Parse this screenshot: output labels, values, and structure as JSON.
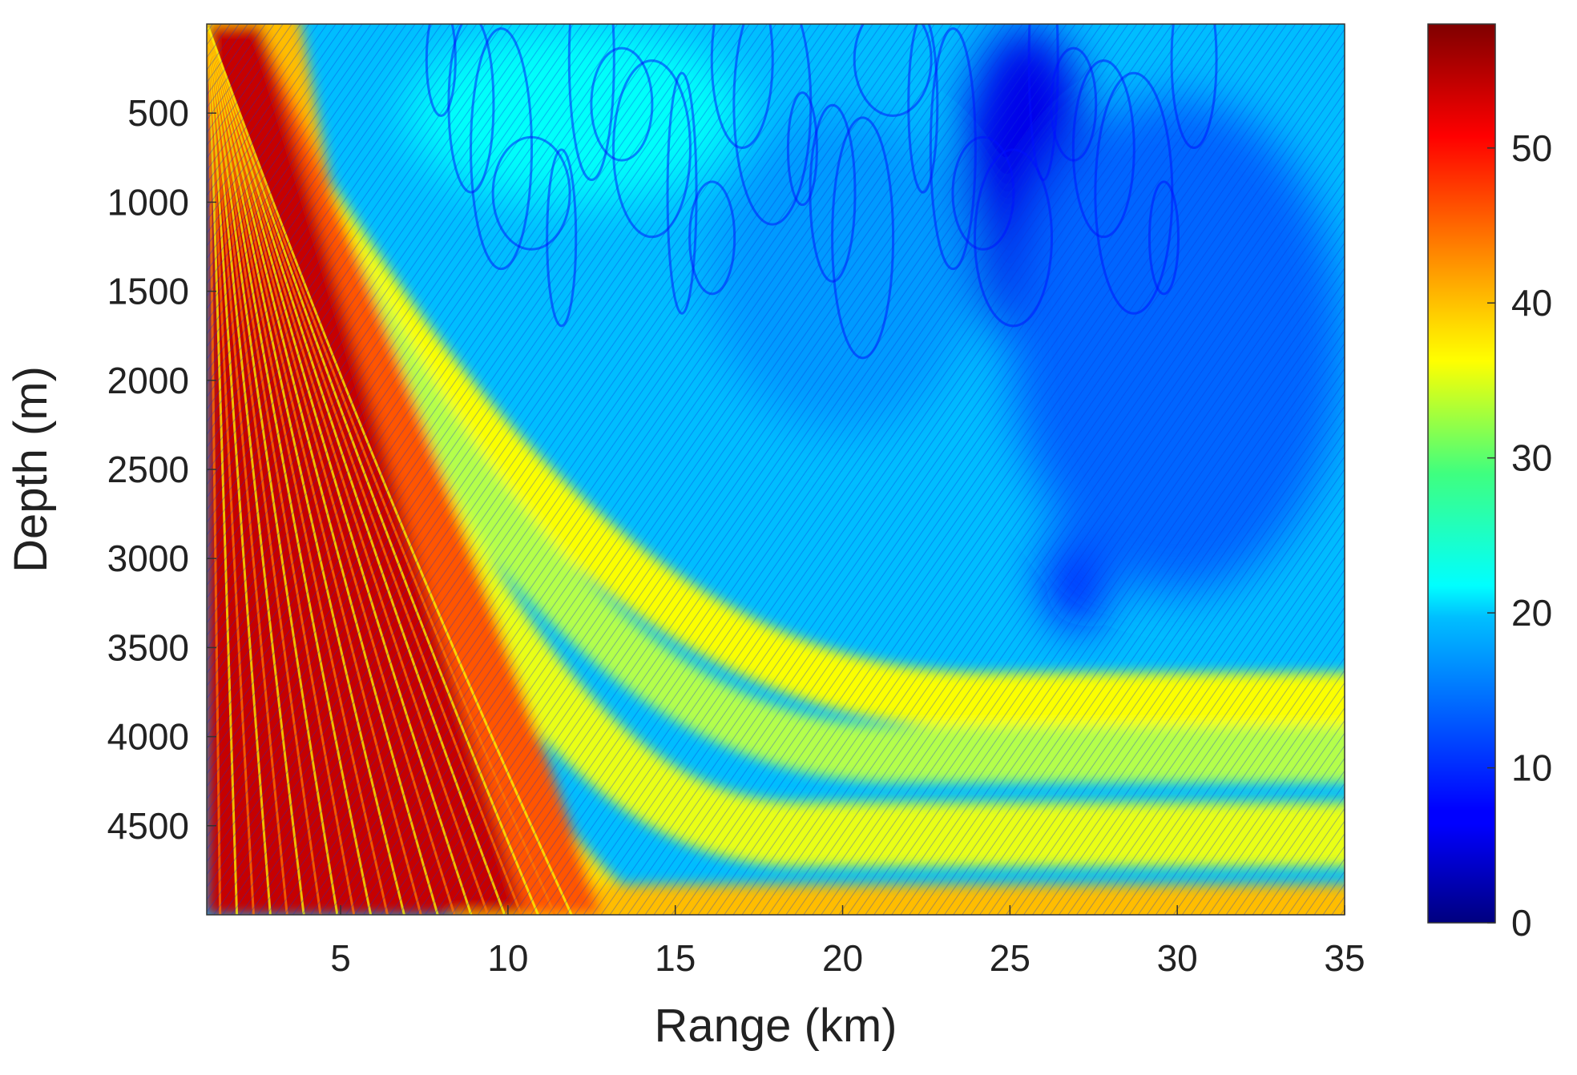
{
  "chart_data": {
    "type": "heatmap",
    "title": "",
    "xlabel": "Range (km)",
    "ylabel": "Depth (m)",
    "xlim": [
      1,
      35
    ],
    "ylim": [
      0,
      5000
    ],
    "y_reversed": true,
    "x_ticks": [
      5,
      10,
      15,
      20,
      25,
      30,
      35
    ],
    "x_tick_labels": [
      "5",
      "10",
      "15",
      "20",
      "25",
      "30",
      "35"
    ],
    "y_ticks": [
      500,
      1000,
      1500,
      2000,
      2500,
      3000,
      3500,
      4000,
      4500
    ],
    "y_tick_labels": [
      "500",
      "1000",
      "1500",
      "2000",
      "2500",
      "3000",
      "3500",
      "4000",
      "4500"
    ],
    "colorbar": {
      "colormap": "jet",
      "clim": [
        0,
        58
      ],
      "ticks": [
        0,
        10,
        20,
        30,
        40,
        50
      ],
      "tick_labels": [
        "0",
        "10",
        "20",
        "30",
        "40",
        "50"
      ]
    },
    "grid": false,
    "field_description_values": {
      "near_source_level": 54,
      "primary_beam_level": 40,
      "secondary_beam_level": 32,
      "upper_shadow_level": 18,
      "deep_minimum_level": 6
    }
  }
}
